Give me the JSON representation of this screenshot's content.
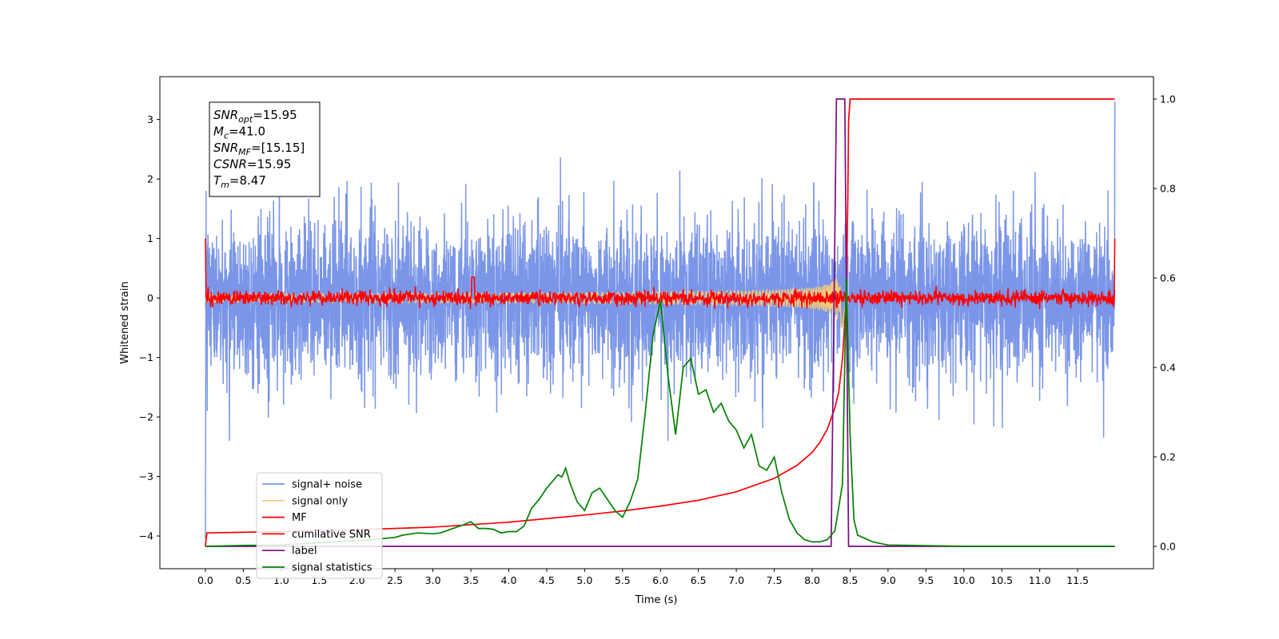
{
  "chart_data": {
    "type": "line",
    "title": "",
    "xlabel": "Time (s)",
    "ylabel": "Whitened strain",
    "xlim": [
      -0.6,
      12.5
    ],
    "ylim": [
      -4.55,
      3.72
    ],
    "y2lim": [
      -0.05,
      1.05
    ],
    "grid": false,
    "legend_placement": "lower-left",
    "x_ticks": [
      0.0,
      0.5,
      1.0,
      1.5,
      2.0,
      2.5,
      3.0,
      3.5,
      4.0,
      4.5,
      5.0,
      5.5,
      6.0,
      6.5,
      7.0,
      7.5,
      8.0,
      8.5,
      9.0,
      9.5,
      10.0,
      10.5,
      11.0,
      11.5
    ],
    "x_tick_labels": [
      "0.0",
      "0.5",
      "1.0",
      "1.5",
      "2.0",
      "2.5",
      "3.0",
      "3.5",
      "4.0",
      "4.5",
      "5.0",
      "5.5",
      "6.0",
      "6.5",
      "7.0",
      "7.5",
      "8.0",
      "8.5",
      "9.0",
      "9.5",
      "10.0",
      "10.5",
      "11.0",
      "11.5"
    ],
    "y_ticks": [
      -4,
      -3,
      -2,
      -1,
      0,
      1,
      2,
      3
    ],
    "y_tick_labels": [
      "−4",
      "−3",
      "−2",
      "−1",
      "0",
      "1",
      "2",
      "3"
    ],
    "y2_ticks": [
      0.0,
      0.2,
      0.4,
      0.6,
      0.8,
      1.0
    ],
    "y2_tick_labels": [
      "0.0",
      "0.2",
      "0.4",
      "0.6",
      "0.8",
      "1.0"
    ],
    "annotation_lines": [
      {
        "sym": "SNR",
        "sub": "opt",
        "val": "=15.95"
      },
      {
        "sym": "M",
        "sub": "c",
        "val": "=41.0"
      },
      {
        "sym": "SNR",
        "sub": "MF",
        "val": "=[15.15]"
      },
      {
        "sym": "CSNR",
        "sub": "",
        "val": "=15.95"
      },
      {
        "sym": "T",
        "sub": "m",
        "val": "=8.47"
      }
    ],
    "series": [
      {
        "name": "signal+ noise",
        "color": "#7b96e8",
        "axis": "left",
        "kind": "noise",
        "t_start": 0.0,
        "t_end": 11.99,
        "amplitude_range": [
          -2.4,
          2.4
        ],
        "endpoints": [
          -4.05,
          3.3
        ]
      },
      {
        "name": "signal only",
        "color": "#f5c97a",
        "axis": "left",
        "kind": "chirp",
        "t_start": 0.0,
        "t_end": 8.45,
        "peak_amplitude": 0.6,
        "peak_time": 8.4
      },
      {
        "name": "MF",
        "color": "#ff0000",
        "axis": "left",
        "kind": "mf",
        "t_start": 0.0,
        "t_end": 11.99,
        "amplitude": 0.12,
        "spike": {
          "t": 3.53,
          "v": 0.35
        },
        "endpoints": [
          1.0,
          1.0
        ]
      },
      {
        "name": "cumilative SNR",
        "color": "#ff0000",
        "axis": "right",
        "points": [
          [
            0.0,
            0.0
          ],
          [
            0.02,
            0.03
          ],
          [
            1.0,
            0.033
          ],
          [
            2.0,
            0.037
          ],
          [
            3.0,
            0.043
          ],
          [
            4.0,
            0.054
          ],
          [
            5.0,
            0.07
          ],
          [
            5.5,
            0.079
          ],
          [
            6.0,
            0.09
          ],
          [
            6.5,
            0.103
          ],
          [
            7.0,
            0.122
          ],
          [
            7.5,
            0.152
          ],
          [
            7.8,
            0.181
          ],
          [
            8.0,
            0.21
          ],
          [
            8.1,
            0.232
          ],
          [
            8.2,
            0.262
          ],
          [
            8.3,
            0.31
          ],
          [
            8.35,
            0.345
          ],
          [
            8.4,
            0.42
          ],
          [
            8.45,
            0.56
          ],
          [
            8.47,
            0.78
          ],
          [
            8.48,
            0.95
          ],
          [
            8.5,
            1.0
          ],
          [
            11.99,
            1.0
          ]
        ]
      },
      {
        "name": "label",
        "color": "#7b0b86",
        "axis": "right",
        "points": [
          [
            0.0,
            0.0
          ],
          [
            8.25,
            0.0
          ],
          [
            8.32,
            1.0
          ],
          [
            8.43,
            1.0
          ],
          [
            8.48,
            0.0
          ],
          [
            11.99,
            0.0
          ]
        ]
      },
      {
        "name": "signal statistics",
        "color": "#008000",
        "axis": "right",
        "points": [
          [
            0.0,
            0.0
          ],
          [
            0.5,
            0.002
          ],
          [
            1.0,
            0.003
          ],
          [
            1.5,
            0.008
          ],
          [
            2.0,
            0.013
          ],
          [
            2.2,
            0.015
          ],
          [
            2.5,
            0.02
          ],
          [
            2.6,
            0.025
          ],
          [
            2.8,
            0.03
          ],
          [
            3.0,
            0.028
          ],
          [
            3.1,
            0.03
          ],
          [
            3.2,
            0.036
          ],
          [
            3.3,
            0.042
          ],
          [
            3.4,
            0.048
          ],
          [
            3.5,
            0.055
          ],
          [
            3.6,
            0.04
          ],
          [
            3.7,
            0.04
          ],
          [
            3.8,
            0.038
          ],
          [
            3.9,
            0.03
          ],
          [
            4.0,
            0.033
          ],
          [
            4.1,
            0.033
          ],
          [
            4.2,
            0.045
          ],
          [
            4.3,
            0.085
          ],
          [
            4.4,
            0.105
          ],
          [
            4.5,
            0.13
          ],
          [
            4.6,
            0.15
          ],
          [
            4.65,
            0.16
          ],
          [
            4.7,
            0.155
          ],
          [
            4.75,
            0.175
          ],
          [
            4.8,
            0.145
          ],
          [
            4.9,
            0.1
          ],
          [
            5.0,
            0.08
          ],
          [
            5.1,
            0.12
          ],
          [
            5.2,
            0.13
          ],
          [
            5.3,
            0.105
          ],
          [
            5.4,
            0.08
          ],
          [
            5.5,
            0.065
          ],
          [
            5.6,
            0.1
          ],
          [
            5.7,
            0.15
          ],
          [
            5.8,
            0.3
          ],
          [
            5.9,
            0.47
          ],
          [
            6.0,
            0.55
          ],
          [
            6.1,
            0.38
          ],
          [
            6.2,
            0.25
          ],
          [
            6.3,
            0.4
          ],
          [
            6.4,
            0.42
          ],
          [
            6.5,
            0.34
          ],
          [
            6.6,
            0.35
          ],
          [
            6.7,
            0.3
          ],
          [
            6.8,
            0.32
          ],
          [
            6.9,
            0.28
          ],
          [
            7.0,
            0.26
          ],
          [
            7.1,
            0.22
          ],
          [
            7.2,
            0.25
          ],
          [
            7.3,
            0.18
          ],
          [
            7.4,
            0.17
          ],
          [
            7.5,
            0.2
          ],
          [
            7.6,
            0.12
          ],
          [
            7.7,
            0.06
          ],
          [
            7.8,
            0.03
          ],
          [
            7.9,
            0.015
          ],
          [
            8.0,
            0.01
          ],
          [
            8.1,
            0.01
          ],
          [
            8.2,
            0.015
          ],
          [
            8.3,
            0.035
          ],
          [
            8.4,
            0.14
          ],
          [
            8.45,
            0.6
          ],
          [
            8.5,
            0.25
          ],
          [
            8.55,
            0.06
          ],
          [
            8.6,
            0.025
          ],
          [
            8.8,
            0.01
          ],
          [
            9.0,
            0.003
          ],
          [
            10.0,
            0.0
          ],
          [
            11.99,
            0.0
          ]
        ]
      }
    ]
  }
}
